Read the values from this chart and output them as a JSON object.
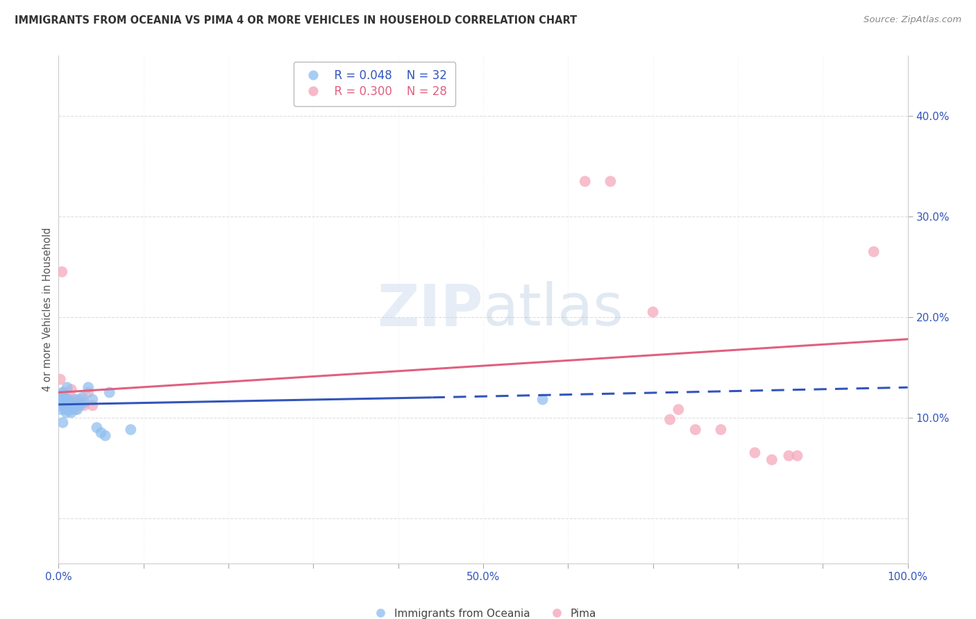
{
  "title": "IMMIGRANTS FROM OCEANIA VS PIMA 4 OR MORE VEHICLES IN HOUSEHOLD CORRELATION CHART",
  "source": "Source: ZipAtlas.com",
  "ylabel": "4 or more Vehicles in Household",
  "watermark": "ZIPatlas",
  "xlim": [
    0.0,
    1.0
  ],
  "ylim": [
    -0.045,
    0.46
  ],
  "xticks": [
    0.0,
    0.1,
    0.2,
    0.3,
    0.4,
    0.5,
    0.6,
    0.7,
    0.8,
    0.9,
    1.0
  ],
  "yticks": [
    0.0,
    0.1,
    0.2,
    0.3,
    0.4
  ],
  "ytick_labels": [
    "",
    "10.0%",
    "20.0%",
    "30.0%",
    "40.0%"
  ],
  "xtick_labels": [
    "0.0%",
    "",
    "",
    "",
    "",
    "50.0%",
    "",
    "",
    "",
    "",
    "100.0%"
  ],
  "legend_blue_R": "R = 0.048",
  "legend_blue_N": "N = 32",
  "legend_pink_R": "R = 0.300",
  "legend_pink_N": "N = 28",
  "blue_color": "#92C0F0",
  "pink_color": "#F5A8BC",
  "blue_line_color": "#3355BB",
  "pink_line_color": "#E06080",
  "title_color": "#333333",
  "source_color": "#888888",
  "axis_label_color": "#3355BB",
  "blue_scatter": [
    [
      0.001,
      0.112
    ],
    [
      0.002,
      0.122
    ],
    [
      0.003,
      0.108
    ],
    [
      0.004,
      0.118
    ],
    [
      0.005,
      0.125
    ],
    [
      0.005,
      0.095
    ],
    [
      0.006,
      0.118
    ],
    [
      0.007,
      0.112
    ],
    [
      0.008,
      0.108
    ],
    [
      0.009,
      0.105
    ],
    [
      0.01,
      0.118
    ],
    [
      0.01,
      0.13
    ],
    [
      0.011,
      0.118
    ],
    [
      0.012,
      0.108
    ],
    [
      0.013,
      0.112
    ],
    [
      0.015,
      0.105
    ],
    [
      0.016,
      0.108
    ],
    [
      0.017,
      0.115
    ],
    [
      0.018,
      0.11
    ],
    [
      0.02,
      0.118
    ],
    [
      0.022,
      0.108
    ],
    [
      0.025,
      0.112
    ],
    [
      0.028,
      0.12
    ],
    [
      0.03,
      0.115
    ],
    [
      0.035,
      0.13
    ],
    [
      0.04,
      0.118
    ],
    [
      0.045,
      0.09
    ],
    [
      0.05,
      0.085
    ],
    [
      0.055,
      0.082
    ],
    [
      0.06,
      0.125
    ],
    [
      0.085,
      0.088
    ],
    [
      0.57,
      0.118
    ]
  ],
  "pink_scatter": [
    [
      0.002,
      0.138
    ],
    [
      0.003,
      0.118
    ],
    [
      0.004,
      0.245
    ],
    [
      0.006,
      0.125
    ],
    [
      0.008,
      0.112
    ],
    [
      0.009,
      0.118
    ],
    [
      0.01,
      0.108
    ],
    [
      0.012,
      0.118
    ],
    [
      0.013,
      0.112
    ],
    [
      0.015,
      0.128
    ],
    [
      0.018,
      0.118
    ],
    [
      0.02,
      0.108
    ],
    [
      0.025,
      0.118
    ],
    [
      0.03,
      0.112
    ],
    [
      0.035,
      0.125
    ],
    [
      0.04,
      0.112
    ],
    [
      0.62,
      0.335
    ],
    [
      0.65,
      0.335
    ],
    [
      0.7,
      0.205
    ],
    [
      0.72,
      0.098
    ],
    [
      0.73,
      0.108
    ],
    [
      0.75,
      0.088
    ],
    [
      0.78,
      0.088
    ],
    [
      0.82,
      0.065
    ],
    [
      0.84,
      0.058
    ],
    [
      0.86,
      0.062
    ],
    [
      0.87,
      0.062
    ],
    [
      0.96,
      0.265
    ]
  ],
  "blue_trendline_solid": [
    [
      0.0,
      0.113
    ],
    [
      0.44,
      0.12
    ]
  ],
  "blue_trendline_dash": [
    [
      0.44,
      0.12
    ],
    [
      1.0,
      0.13
    ]
  ],
  "pink_trendline": [
    [
      0.0,
      0.125
    ],
    [
      1.0,
      0.178
    ]
  ],
  "blue_scatter_size": 130,
  "pink_scatter_size": 130,
  "background_color": "#FFFFFF",
  "grid_color_h": "#DDDDDD",
  "grid_color_v": "#EEEEEE"
}
